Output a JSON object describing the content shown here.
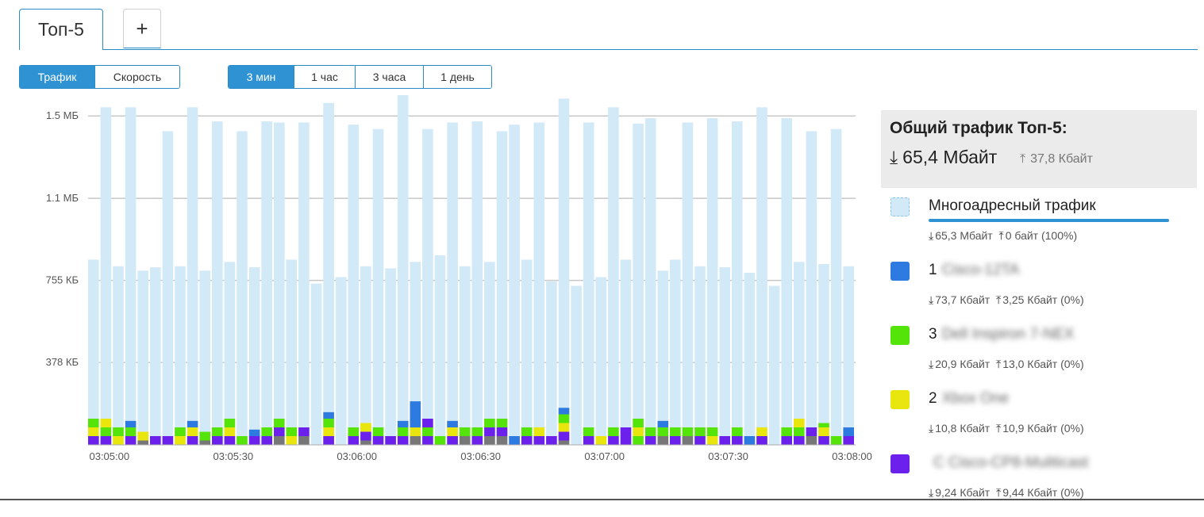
{
  "tabs": [
    {
      "label": "Топ-5"
    },
    {
      "label": "+"
    }
  ],
  "mode_buttons": [
    {
      "label": "Трафик",
      "active": true
    },
    {
      "label": "Скорость",
      "active": false
    }
  ],
  "time_buttons": [
    {
      "label": "3 мин",
      "active": true
    },
    {
      "label": "1 час",
      "active": false
    },
    {
      "label": "3 часа",
      "active": false
    },
    {
      "label": "1 день",
      "active": false
    }
  ],
  "summary": {
    "title": "Общий трафик Топ-5:",
    "down": "65,4 Мбайт",
    "up": "37,8 Кбайт"
  },
  "legend": [
    {
      "index": "",
      "name": "Многоадресный трафик",
      "blurred": "",
      "color": "#d2e9f8",
      "down": "65,3 Мбайт",
      "up": "0 байт (100%)",
      "bar": true
    },
    {
      "index": "1",
      "name": "",
      "blurred": "Cisco-12TA",
      "color": "#2d7be0",
      "down": "73,7 Кбайт",
      "up": "3,25 Кбайт (0%)",
      "bar": false
    },
    {
      "index": "3",
      "name": "",
      "blurred": "Dell Inspiron 7-NEX",
      "color": "#55e40a",
      "down": "20,9 Кбайт",
      "up": "13,0 Кбайт (0%)",
      "bar": false
    },
    {
      "index": "2",
      "name": "",
      "blurred": "Xbox One",
      "color": "#e8e60c",
      "down": "10,8 Кбайт",
      "up": "10,9 Кбайт (0%)",
      "bar": false
    },
    {
      "index": "",
      "name": "",
      "blurred": "C Cisco-CP8-Muliticast",
      "color": "#6b20ec",
      "down": "9,24 Кбайт",
      "up": "9,44 Кбайт (0%)",
      "bar": false
    }
  ],
  "chart_data": {
    "type": "bar",
    "stacked": true,
    "y_tick_labels": [
      "1.5 МБ",
      "1.1 МБ",
      "755 КБ",
      "378 КБ"
    ],
    "y_tick_values_kb": [
      1510,
      1132,
      755,
      378
    ],
    "ylim_kb": [
      0,
      1540
    ],
    "x_tick_labels": [
      "03:05:00",
      "03:05:30",
      "03:06:00",
      "03:06:30",
      "03:07:00",
      "03:07:30",
      "03:08:00"
    ],
    "x_tick_index": [
      0,
      10,
      20,
      30,
      40,
      50,
      60
    ],
    "grid": true,
    "series_colors": {
      "multicast": "#d2e9f8",
      "s_purple": "#6b20ec",
      "s_yellow": "#e8e60c",
      "s_green": "#55e40a",
      "s_blue": "#2d7be0",
      "s_gray": "#777777"
    },
    "bars_kb_total": [
      850,
      1550,
      820,
      1550,
      800,
      815,
      1440,
      820,
      1550,
      800,
      1485,
      840,
      1440,
      815,
      1485,
      1480,
      850,
      1480,
      740,
      1570,
      770,
      1470,
      820,
      1450,
      810,
      1630,
      840,
      1450,
      870,
      1480,
      820,
      1485,
      840,
      1440,
      1470,
      850,
      1480,
      750,
      1590,
      730,
      1480,
      770,
      1550,
      850,
      1475,
      1500,
      800,
      850,
      1480,
      820,
      1500,
      815,
      1485,
      790,
      1550,
      730,
      1500,
      840,
      1440,
      830,
      1450,
      820
    ],
    "bars_segments": [
      [
        [
          "s_purple",
          40
        ],
        [
          "s_yellow",
          40
        ],
        [
          "s_green",
          40
        ]
      ],
      [
        [
          "s_purple",
          40
        ],
        [
          "s_green",
          40
        ],
        [
          "s_yellow",
          40
        ]
      ],
      [
        [
          "s_yellow",
          40
        ],
        [
          "s_green",
          40
        ]
      ],
      [
        [
          "s_purple",
          40
        ],
        [
          "s_green",
          40
        ],
        [
          "s_blue",
          30
        ]
      ],
      [
        [
          "s_gray",
          20
        ],
        [
          "s_yellow",
          40
        ]
      ],
      [
        [
          "s_purple",
          40
        ]
      ],
      [
        [
          "s_purple",
          40
        ]
      ],
      [
        [
          "s_yellow",
          40
        ],
        [
          "s_green",
          40
        ]
      ],
      [
        [
          "s_purple",
          40
        ],
        [
          "s_yellow",
          40
        ],
        [
          "s_blue",
          30
        ]
      ],
      [
        [
          "s_gray",
          20
        ],
        [
          "s_green",
          40
        ]
      ],
      [
        [
          "s_purple",
          40
        ],
        [
          "s_green",
          40
        ]
      ],
      [
        [
          "s_purple",
          40
        ],
        [
          "s_yellow",
          40
        ],
        [
          "s_green",
          40
        ]
      ],
      [
        [
          "s_green",
          40
        ]
      ],
      [
        [
          "s_purple",
          40
        ],
        [
          "s_blue",
          30
        ]
      ],
      [
        [
          "s_purple",
          40
        ],
        [
          "s_green",
          40
        ]
      ],
      [
        [
          "s_gray",
          40
        ],
        [
          "s_purple",
          40
        ],
        [
          "s_green",
          40
        ]
      ],
      [
        [
          "s_yellow",
          40
        ],
        [
          "s_green",
          40
        ]
      ],
      [
        [
          "s_gray",
          40
        ],
        [
          "s_purple",
          40
        ]
      ],
      [],
      [
        [
          "s_purple",
          40
        ],
        [
          "s_yellow",
          40
        ],
        [
          "s_green",
          40
        ],
        [
          "s_blue",
          30
        ]
      ],
      [],
      [
        [
          "s_purple",
          40
        ],
        [
          "s_green",
          40
        ]
      ],
      [
        [
          "s_gray",
          20
        ],
        [
          "s_purple",
          40
        ],
        [
          "s_yellow",
          40
        ]
      ],
      [
        [
          "s_purple",
          40
        ],
        [
          "s_green",
          40
        ]
      ],
      [
        [
          "s_purple",
          40
        ]
      ],
      [
        [
          "s_purple",
          40
        ],
        [
          "s_green",
          40
        ],
        [
          "s_blue",
          30
        ]
      ],
      [
        [
          "s_gray",
          40
        ],
        [
          "s_yellow",
          40
        ],
        [
          "s_blue",
          120
        ]
      ],
      [
        [
          "s_purple",
          40
        ],
        [
          "s_green",
          40
        ],
        [
          "s_purple",
          40
        ]
      ],
      [
        [
          "s_green",
          40
        ]
      ],
      [
        [
          "s_purple",
          40
        ],
        [
          "s_yellow",
          40
        ],
        [
          "s_blue",
          30
        ]
      ],
      [
        [
          "s_gray",
          40
        ],
        [
          "s_green",
          40
        ]
      ],
      [
        [
          "s_purple",
          40
        ],
        [
          "s_green",
          40
        ]
      ],
      [
        [
          "s_gray",
          40
        ],
        [
          "s_purple",
          40
        ],
        [
          "s_green",
          40
        ]
      ],
      [
        [
          "s_gray",
          40
        ],
        [
          "s_purple",
          40
        ],
        [
          "s_green",
          40
        ]
      ],
      [
        [
          "s_blue",
          40
        ]
      ],
      [
        [
          "s_purple",
          40
        ],
        [
          "s_green",
          40
        ]
      ],
      [
        [
          "s_purple",
          40
        ],
        [
          "s_yellow",
          40
        ]
      ],
      [
        [
          "s_purple",
          40
        ]
      ],
      [
        [
          "s_gray",
          20
        ],
        [
          "s_purple",
          40
        ],
        [
          "s_yellow",
          40
        ],
        [
          "s_green",
          40
        ],
        [
          "s_blue",
          30
        ]
      ],
      [],
      [
        [
          "s_purple",
          40
        ],
        [
          "s_green",
          40
        ]
      ],
      [
        [
          "s_yellow",
          40
        ]
      ],
      [
        [
          "s_purple",
          40
        ],
        [
          "s_green",
          40
        ]
      ],
      [
        [
          "s_purple",
          40
        ],
        [
          "s_purple",
          40
        ]
      ],
      [
        [
          "s_green",
          40
        ],
        [
          "s_yellow",
          40
        ],
        [
          "s_green",
          40
        ]
      ],
      [
        [
          "s_purple",
          40
        ],
        [
          "s_green",
          40
        ]
      ],
      [
        [
          "s_gray",
          40
        ],
        [
          "s_green",
          40
        ],
        [
          "s_blue",
          30
        ]
      ],
      [
        [
          "s_purple",
          40
        ],
        [
          "s_green",
          40
        ]
      ],
      [
        [
          "s_gray",
          40
        ],
        [
          "s_green",
          40
        ]
      ],
      [
        [
          "s_purple",
          40
        ],
        [
          "s_green",
          40
        ]
      ],
      [
        [
          "s_yellow",
          40
        ],
        [
          "s_green",
          40
        ]
      ],
      [
        [
          "s_purple",
          40
        ]
      ],
      [
        [
          "s_purple",
          40
        ],
        [
          "s_green",
          40
        ]
      ],
      [
        [
          "s_blue",
          40
        ]
      ],
      [
        [
          "s_purple",
          40
        ],
        [
          "s_yellow",
          40
        ]
      ],
      [],
      [
        [
          "s_purple",
          40
        ],
        [
          "s_green",
          40
        ]
      ],
      [
        [
          "s_purple",
          40
        ],
        [
          "s_green",
          40
        ],
        [
          "s_yellow",
          40
        ]
      ],
      [
        [
          "s_gray",
          40
        ],
        [
          "s_purple",
          40
        ]
      ],
      [
        [
          "s_purple",
          40
        ],
        [
          "s_yellow",
          40
        ],
        [
          "s_green",
          20
        ]
      ],
      [
        [
          "s_green",
          40
        ]
      ],
      [
        [
          "s_purple",
          40
        ],
        [
          "s_blue",
          40
        ]
      ]
    ]
  }
}
